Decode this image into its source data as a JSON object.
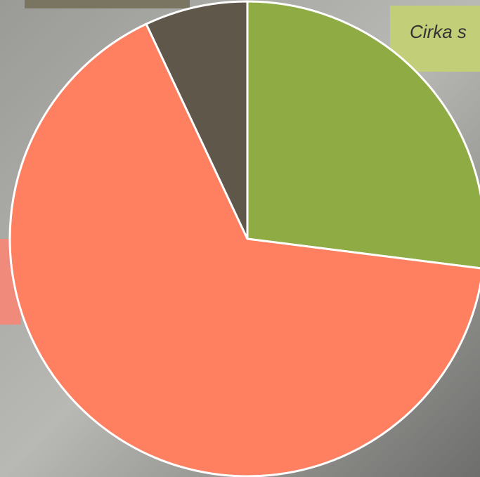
{
  "chart_data": {
    "type": "pie",
    "annotation": "Cirka s",
    "values": [
      27,
      66,
      7
    ],
    "colors": [
      "#8eab44",
      "#ff7f61",
      "#5f574a"
    ],
    "start_angle": 0
  }
}
